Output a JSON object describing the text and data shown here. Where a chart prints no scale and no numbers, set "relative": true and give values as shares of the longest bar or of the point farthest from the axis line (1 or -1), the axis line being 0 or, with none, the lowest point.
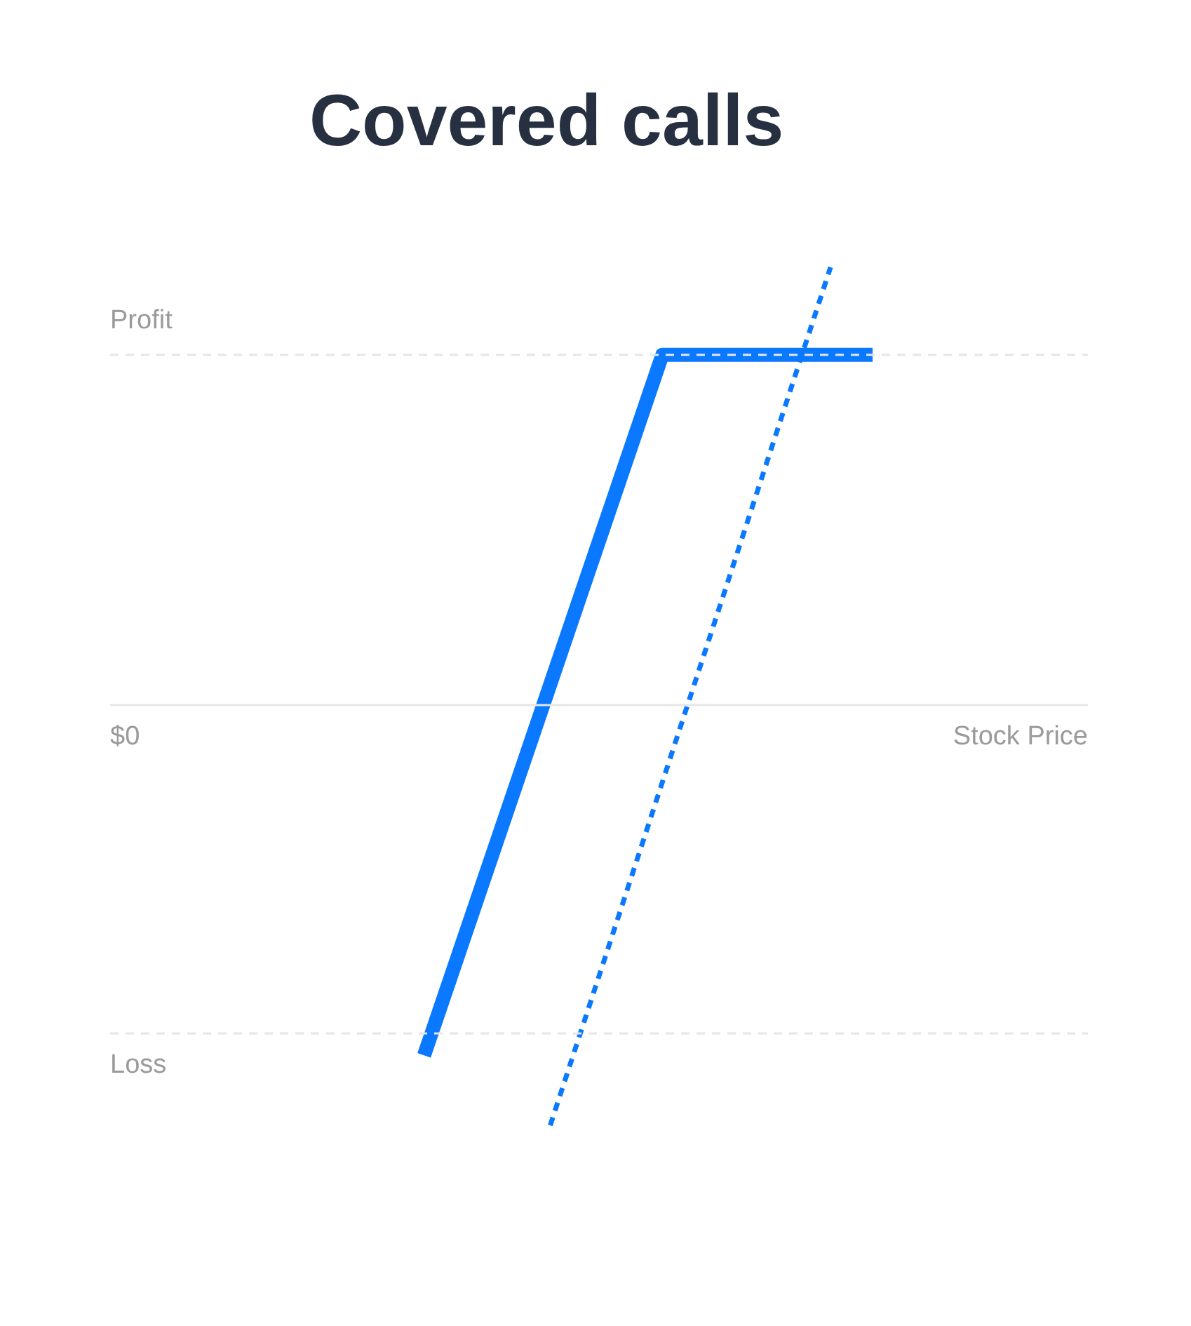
{
  "chart_data": {
    "type": "line",
    "title": "Covered calls",
    "xlabel": "Stock Price",
    "relative": true,
    "categories": [
      null,
      null,
      null,
      null,
      null,
      null,
      null,
      null,
      null,
      null,
      null,
      null,
      null,
      null,
      null,
      null,
      null,
      null,
      null,
      null,
      null,
      null,
      null,
      null,
      null,
      null,
      null,
      null,
      null,
      null,
      null,
      null,
      null
    ],
    "series": [
      {
        "color": "#0a78ff",
        "line_style": "solid",
        "values": [
          -0.8,
          null,
          null,
          null,
          null,
          null,
          null,
          null,
          null,
          null,
          null,
          null,
          null,
          null,
          null,
          null,
          null,
          0.8,
          null,
          null,
          null,
          null,
          null,
          null,
          null,
          null,
          null,
          null,
          null,
          null,
          null,
          null,
          0.8
        ]
      },
      {
        "color": "#0a78ff",
        "line_style": "dashed",
        "values": [
          null,
          null,
          null,
          null,
          null,
          null,
          null,
          null,
          null,
          -0.96,
          null,
          null,
          null,
          null,
          null,
          null,
          null,
          null,
          null,
          null,
          null,
          null,
          null,
          null,
          null,
          null,
          null,
          null,
          null,
          1.0,
          null,
          null,
          null
        ]
      }
    ],
    "ref_lines": [
      {
        "axis": "y",
        "value": 0.8,
        "label": "Profit",
        "line_style": "dashed",
        "color": "#e6e6e6"
      },
      {
        "axis": "y",
        "value": 0,
        "label": "$0",
        "line_style": "solid",
        "color": "#e6e6e6"
      },
      {
        "axis": "y",
        "value": -0.75,
        "label": "Loss",
        "line_style": "dashed",
        "color": "#e6e6e6"
      }
    ],
    "grid": false
  }
}
